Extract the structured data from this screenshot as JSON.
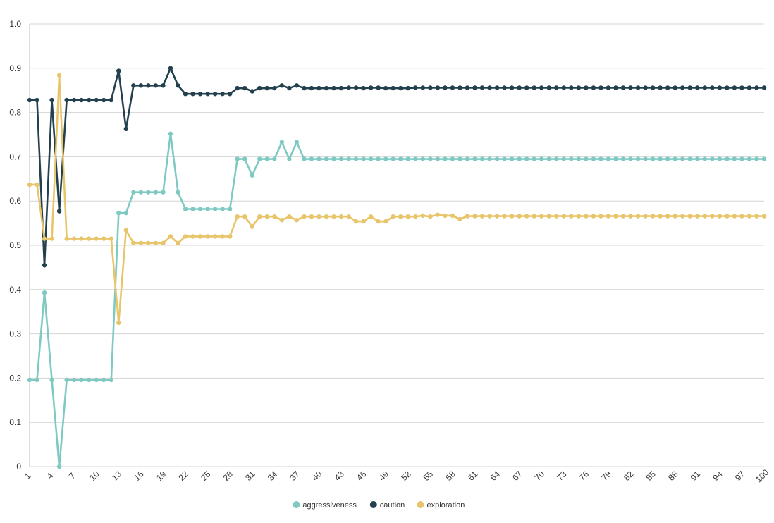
{
  "chart_data": {
    "type": "line",
    "title": "",
    "xlabel": "",
    "ylabel": "",
    "ylim": [
      0,
      1.0
    ],
    "yticks": [
      "0",
      "0.1",
      "0.2",
      "0.3",
      "0.4",
      "0.5",
      "0.6",
      "0.7",
      "0.8",
      "0.9",
      "1.0"
    ],
    "x": [
      1,
      2,
      3,
      4,
      5,
      6,
      7,
      8,
      9,
      10,
      11,
      12,
      13,
      14,
      15,
      16,
      17,
      18,
      19,
      20,
      21,
      22,
      23,
      24,
      25,
      26,
      27,
      28,
      29,
      30,
      31,
      32,
      33,
      34,
      35,
      36,
      37,
      38,
      39,
      40,
      41,
      42,
      43,
      44,
      45,
      46,
      47,
      48,
      49,
      50,
      51,
      52,
      53,
      54,
      55,
      56,
      57,
      58,
      59,
      60,
      61,
      62,
      63,
      64,
      65,
      66,
      67,
      68,
      69,
      70,
      71,
      72,
      73,
      74,
      75,
      76,
      77,
      78,
      79,
      80,
      81,
      82,
      83,
      84,
      85,
      86,
      87,
      88,
      89,
      90,
      91,
      92,
      93,
      94,
      95,
      96,
      97,
      98,
      99,
      100
    ],
    "xtick_labels": [
      "1",
      "4",
      "7",
      "10",
      "13",
      "16",
      "19",
      "22",
      "25",
      "28",
      "31",
      "34",
      "37",
      "40",
      "43",
      "46",
      "49",
      "52",
      "55",
      "58",
      "61",
      "64",
      "67",
      "70",
      "73",
      "76",
      "79",
      "82",
      "85",
      "88",
      "91",
      "94",
      "97",
      "100"
    ],
    "grid": true,
    "legend_position": "bottom",
    "series": [
      {
        "name": "aggressiveness",
        "color": "#7ecac3",
        "values": [
          0.196,
          0.196,
          0.393,
          0.196,
          0.0,
          0.196,
          0.196,
          0.196,
          0.196,
          0.196,
          0.196,
          0.196,
          0.573,
          0.573,
          0.62,
          0.62,
          0.62,
          0.62,
          0.62,
          0.752,
          0.62,
          0.582,
          0.582,
          0.582,
          0.582,
          0.582,
          0.582,
          0.582,
          0.695,
          0.695,
          0.658,
          0.695,
          0.695,
          0.695,
          0.733,
          0.695,
          0.733,
          0.695,
          0.695,
          0.695,
          0.695,
          0.695,
          0.695,
          0.695,
          0.695,
          0.695,
          0.695,
          0.695,
          0.695,
          0.695,
          0.695,
          0.695,
          0.695,
          0.695,
          0.695,
          0.695,
          0.695,
          0.695,
          0.695,
          0.695,
          0.695,
          0.695,
          0.695,
          0.695,
          0.695,
          0.695,
          0.695,
          0.695,
          0.695,
          0.695,
          0.695,
          0.695,
          0.695,
          0.695,
          0.695,
          0.695,
          0.695,
          0.695,
          0.695,
          0.695,
          0.695,
          0.695,
          0.695,
          0.695,
          0.695,
          0.695,
          0.695,
          0.695,
          0.695,
          0.695,
          0.695,
          0.695,
          0.695,
          0.695,
          0.695,
          0.695,
          0.695,
          0.695,
          0.695,
          0.695
        ]
      },
      {
        "name": "caution",
        "color": "#23404e",
        "values": [
          0.828,
          0.828,
          0.455,
          0.828,
          0.577,
          0.828,
          0.828,
          0.828,
          0.828,
          0.828,
          0.828,
          0.828,
          0.894,
          0.763,
          0.861,
          0.861,
          0.861,
          0.861,
          0.861,
          0.9,
          0.861,
          0.842,
          0.842,
          0.842,
          0.842,
          0.842,
          0.842,
          0.842,
          0.855,
          0.855,
          0.848,
          0.855,
          0.855,
          0.855,
          0.861,
          0.855,
          0.861,
          0.855,
          0.855,
          0.855,
          0.855,
          0.855,
          0.855,
          0.856,
          0.856,
          0.855,
          0.856,
          0.856,
          0.855,
          0.855,
          0.855,
          0.855,
          0.856,
          0.856,
          0.856,
          0.856,
          0.856,
          0.856,
          0.856,
          0.856,
          0.856,
          0.856,
          0.856,
          0.856,
          0.856,
          0.856,
          0.856,
          0.856,
          0.856,
          0.856,
          0.856,
          0.856,
          0.856,
          0.856,
          0.856,
          0.856,
          0.856,
          0.856,
          0.856,
          0.856,
          0.856,
          0.856,
          0.856,
          0.856,
          0.856,
          0.856,
          0.856,
          0.856,
          0.856,
          0.856,
          0.856,
          0.856,
          0.856,
          0.856,
          0.856,
          0.856,
          0.856,
          0.856,
          0.856,
          0.856
        ]
      },
      {
        "name": "exploration",
        "color": "#e8c56a",
        "values": [
          0.637,
          0.637,
          0.515,
          0.515,
          0.884,
          0.515,
          0.515,
          0.515,
          0.515,
          0.515,
          0.515,
          0.515,
          0.325,
          0.534,
          0.505,
          0.505,
          0.505,
          0.505,
          0.505,
          0.52,
          0.505,
          0.52,
          0.52,
          0.52,
          0.52,
          0.52,
          0.52,
          0.52,
          0.565,
          0.565,
          0.542,
          0.565,
          0.565,
          0.565,
          0.557,
          0.565,
          0.557,
          0.565,
          0.565,
          0.565,
          0.565,
          0.565,
          0.565,
          0.565,
          0.554,
          0.554,
          0.565,
          0.554,
          0.554,
          0.565,
          0.565,
          0.565,
          0.565,
          0.567,
          0.565,
          0.569,
          0.567,
          0.567,
          0.559,
          0.566,
          0.566,
          0.566,
          0.566,
          0.566,
          0.566,
          0.566,
          0.566,
          0.566,
          0.566,
          0.566,
          0.566,
          0.566,
          0.566,
          0.566,
          0.566,
          0.566,
          0.566,
          0.566,
          0.566,
          0.566,
          0.566,
          0.566,
          0.566,
          0.566,
          0.566,
          0.566,
          0.566,
          0.566,
          0.566,
          0.566,
          0.566,
          0.566,
          0.566,
          0.566,
          0.566,
          0.566,
          0.566,
          0.566,
          0.566,
          0.566
        ]
      }
    ]
  }
}
